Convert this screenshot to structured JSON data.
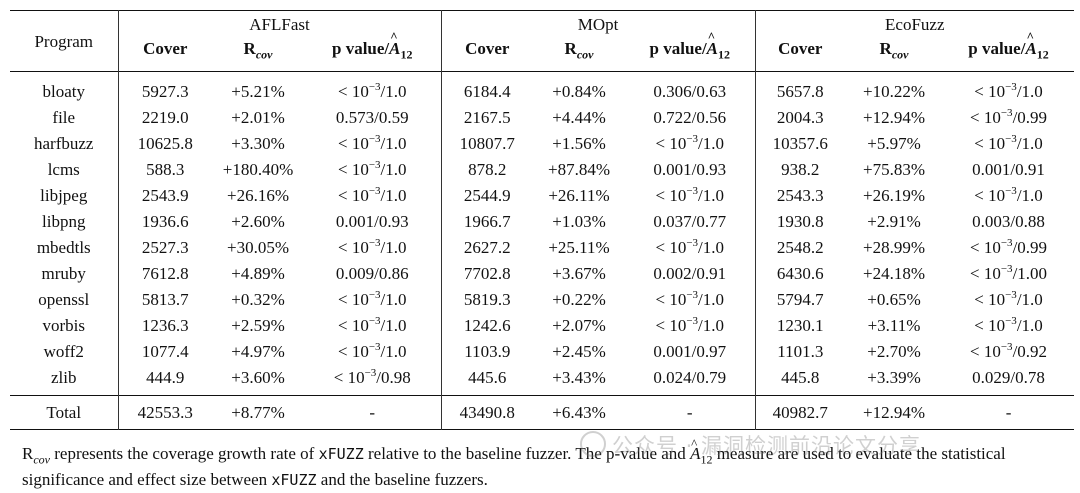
{
  "table": {
    "program_header": "Program",
    "groups": [
      "AFLFast",
      "MOpt",
      "EcoFuzz"
    ],
    "col_cover": "Cover",
    "col_r_main": "R",
    "col_r_sub": "cov",
    "col_p_text": "p value/",
    "col_p_a": "A",
    "col_p_sub": "12",
    "rows": [
      {
        "program": "bloaty",
        "c1": "5927.3",
        "r1": "+5.21%",
        "p1": "< 10^-3/1.0",
        "c2": "6184.4",
        "r2": "+0.84%",
        "p2": "0.306/0.63",
        "c3": "5657.8",
        "r3": "+10.22%",
        "p3": "< 10^-3/1.0"
      },
      {
        "program": "file",
        "c1": "2219.0",
        "r1": "+2.01%",
        "p1": "0.573/0.59",
        "c2": "2167.5",
        "r2": "+4.44%",
        "p2": "0.722/0.56",
        "c3": "2004.3",
        "r3": "+12.94%",
        "p3": "< 10^-3/0.99"
      },
      {
        "program": "harfbuzz",
        "c1": "10625.8",
        "r1": "+3.30%",
        "p1": "< 10^-3/1.0",
        "c2": "10807.7",
        "r2": "+1.56%",
        "p2": "< 10^-3/1.0",
        "c3": "10357.6",
        "r3": "+5.97%",
        "p3": "< 10^-3/1.0"
      },
      {
        "program": "lcms",
        "c1": "588.3",
        "r1": "+180.40%",
        "p1": "< 10^-3/1.0",
        "c2": "878.2",
        "r2": "+87.84%",
        "p2": "0.001/0.93",
        "c3": "938.2",
        "r3": "+75.83%",
        "p3": "0.001/0.91"
      },
      {
        "program": "libjpeg",
        "c1": "2543.9",
        "r1": "+26.16%",
        "p1": "< 10^-3/1.0",
        "c2": "2544.9",
        "r2": "+26.11%",
        "p2": "< 10^-3/1.0",
        "c3": "2543.3",
        "r3": "+26.19%",
        "p3": "< 10^-3/1.0"
      },
      {
        "program": "libpng",
        "c1": "1936.6",
        "r1": "+2.60%",
        "p1": "0.001/0.93",
        "c2": "1966.7",
        "r2": "+1.03%",
        "p2": "0.037/0.77",
        "c3": "1930.8",
        "r3": "+2.91%",
        "p3": "0.003/0.88"
      },
      {
        "program": "mbedtls",
        "c1": "2527.3",
        "r1": "+30.05%",
        "p1": "< 10^-3/1.0",
        "c2": "2627.2",
        "r2": "+25.11%",
        "p2": "< 10^-3/1.0",
        "c3": "2548.2",
        "r3": "+28.99%",
        "p3": "< 10^-3/0.99"
      },
      {
        "program": "mruby",
        "c1": "7612.8",
        "r1": "+4.89%",
        "p1": "0.009/0.86",
        "c2": "7702.8",
        "r2": "+3.67%",
        "p2": "0.002/0.91",
        "c3": "6430.6",
        "r3": "+24.18%",
        "p3": "< 10^-3/1.00"
      },
      {
        "program": "openssl",
        "c1": "5813.7",
        "r1": "+0.32%",
        "p1": "< 10^-3/1.0",
        "c2": "5819.3",
        "r2": "+0.22%",
        "p2": "< 10^-3/1.0",
        "c3": "5794.7",
        "r3": "+0.65%",
        "p3": "< 10^-3/1.0"
      },
      {
        "program": "vorbis",
        "c1": "1236.3",
        "r1": "+2.59%",
        "p1": "< 10^-3/1.0",
        "c2": "1242.6",
        "r2": "+2.07%",
        "p2": "< 10^-3/1.0",
        "c3": "1230.1",
        "r3": "+3.11%",
        "p3": "< 10^-3/1.0"
      },
      {
        "program": "woff2",
        "c1": "1077.4",
        "r1": "+4.97%",
        "p1": "< 10^-3/1.0",
        "c2": "1103.9",
        "r2": "+2.45%",
        "p2": "0.001/0.97",
        "c3": "1101.3",
        "r3": "+2.70%",
        "p3": "< 10^-3/0.92"
      },
      {
        "program": "zlib",
        "c1": "444.9",
        "r1": "+3.60%",
        "p1": "< 10^-3/0.98",
        "c2": "445.6",
        "r2": "+3.43%",
        "p2": "0.024/0.79",
        "c3": "445.8",
        "r3": "+3.39%",
        "p3": "0.029/0.78"
      }
    ],
    "total": {
      "program": "Total",
      "c1": "42553.3",
      "r1": "+8.77%",
      "p1": "-",
      "c2": "43490.8",
      "r2": "+6.43%",
      "p2": "-",
      "c3": "40982.7",
      "r3": "+12.94%",
      "p3": "-"
    }
  },
  "caption": {
    "r_main": "R",
    "r_sub": "cov",
    "part1": " represents the coverage growth rate of ",
    "tool1": "xFUZZ",
    "part2": " relative to the baseline fuzzer. The p-value and ",
    "a_main": "A",
    "a_sub": "12",
    "part3": " measure are used to evaluate the statistical significance and effect size between ",
    "tool2": "xFUZZ",
    "part4": " and the baseline fuzzers."
  },
  "watermark": "公众号 · 漏洞检测前沿论文分享"
}
